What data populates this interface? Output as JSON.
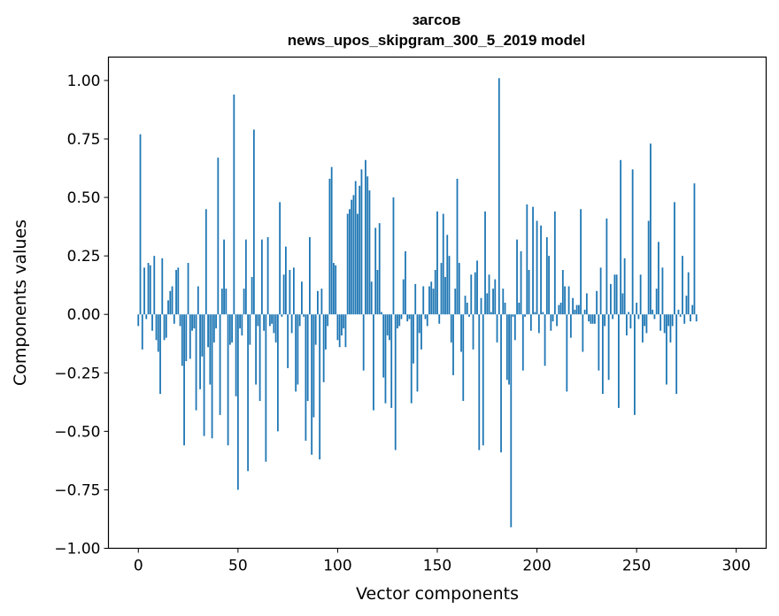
{
  "chart_data": {
    "type": "bar",
    "title": "загсов",
    "subtitle": "news_upos_skipgram_300_5_2019 model",
    "xlabel": "Vector components",
    "ylabel": "Components values",
    "xlim": [
      -15,
      315
    ],
    "ylim": [
      -1.0,
      1.1
    ],
    "xticks": [
      0,
      50,
      100,
      150,
      200,
      250,
      300
    ],
    "xtick_labels": [
      "0",
      "50",
      "100",
      "150",
      "200",
      "250",
      "300"
    ],
    "yticks": [
      1.0,
      0.75,
      0.5,
      0.25,
      0.0,
      -0.25,
      -0.5,
      -0.75,
      -1.0
    ],
    "ytick_labels": [
      "1.00",
      "0.75",
      "0.50",
      "0.25",
      "0.00",
      "−0.25",
      "−0.50",
      "−0.75",
      "−1.00"
    ],
    "grid": false,
    "bar_color": "#1f77b4",
    "series": [
      {
        "values": [
          -0.05,
          0.77,
          -0.15,
          0.2,
          -0.02,
          0.22,
          0.21,
          -0.07,
          0.25,
          -0.11,
          -0.16,
          -0.34,
          0.24,
          -0.11,
          -0.1,
          0.06,
          0.1,
          0.12,
          -0.04,
          0.19,
          0.2,
          -0.05,
          -0.22,
          -0.56,
          -0.2,
          0.22,
          -0.19,
          -0.07,
          -0.06,
          -0.41,
          0.12,
          -0.32,
          -0.18,
          -0.52,
          0.45,
          -0.14,
          -0.3,
          -0.53,
          -0.12,
          -0.06,
          0.67,
          -0.43,
          0.11,
          0.32,
          0.11,
          -0.56,
          -0.13,
          -0.12,
          0.94,
          -0.35,
          -0.75,
          -0.06,
          -0.09,
          0.11,
          0.32,
          -0.67,
          -0.13,
          0.16,
          0.79,
          -0.3,
          -0.05,
          -0.37,
          0.32,
          -0.07,
          -0.63,
          0.33,
          -0.05,
          -0.04,
          -0.08,
          -0.12,
          -0.5,
          0.48,
          -0.01,
          0.17,
          0.29,
          -0.23,
          0.19,
          -0.08,
          0.2,
          -0.33,
          -0.3,
          -0.05,
          0.14,
          -0.01,
          -0.54,
          -0.37,
          0.33,
          -0.6,
          -0.44,
          -0.13,
          0.1,
          -0.62,
          0.11,
          -0.29,
          -0.15,
          -0.05,
          0.58,
          0.63,
          0.22,
          0.21,
          -0.11,
          -0.14,
          -0.09,
          -0.06,
          -0.14,
          0.43,
          0.45,
          0.49,
          0.51,
          0.57,
          0.43,
          0.55,
          0.62,
          -0.24,
          0.66,
          0.59,
          0.53,
          0.14,
          -0.41,
          0.37,
          0.19,
          0.39,
          0.01,
          -0.27,
          -0.38,
          -0.09,
          -0.11,
          -0.4,
          0.5,
          -0.58,
          -0.06,
          -0.05,
          -0.02,
          0.15,
          0.27,
          -0.03,
          -0.02,
          -0.38,
          -0.21,
          0.13,
          -0.33,
          -0.08,
          -0.15,
          0.12,
          -0.02,
          -0.05,
          0.12,
          0.14,
          0.11,
          0.19,
          0.44,
          -0.04,
          0.22,
          0.43,
          0.16,
          0.34,
          0.25,
          -0.12,
          -0.26,
          0.11,
          0.58,
          0.22,
          -0.16,
          -0.37,
          0.08,
          0.05,
          -0.01,
          0.17,
          -0.15,
          0.18,
          0.23,
          -0.58,
          0.07,
          -0.56,
          0.44,
          0.09,
          0.17,
          0.01,
          0.11,
          0.15,
          -0.12,
          1.01,
          -0.59,
          0.11,
          0.05,
          -0.28,
          -0.3,
          -0.91,
          -0.01,
          -0.11,
          0.32,
          0.05,
          0.27,
          -0.24,
          -0.01,
          0.47,
          0.19,
          -0.07,
          0.46,
          0.01,
          0.4,
          -0.08,
          0.38,
          0.01,
          -0.22,
          0.33,
          0.25,
          -0.07,
          -0.03,
          0.44,
          -0.05,
          0.04,
          0.05,
          0.19,
          0.12,
          -0.33,
          0.12,
          -0.1,
          0.07,
          0.02,
          0.04,
          0.04,
          0.45,
          -0.16,
          0.02,
          0.09,
          -0.03,
          -0.04,
          -0.04,
          -0.04,
          0.1,
          -0.24,
          0.2,
          -0.34,
          -0.05,
          0.41,
          -0.28,
          0.13,
          -0.02,
          0.17,
          0.17,
          -0.4,
          0.66,
          0.09,
          0.24,
          -0.09,
          0.01,
          -0.06,
          0.62,
          -0.43,
          0.05,
          -0.02,
          0.17,
          -0.12,
          -0.05,
          -0.08,
          0.4,
          0.73,
          0.02,
          -0.02,
          0.11,
          0.31,
          -0.07,
          0.2,
          -0.08,
          -0.3,
          -0.05,
          -0.12,
          -0.05,
          0.48,
          -0.34,
          0.02,
          -0.01,
          0.25,
          -0.04,
          0.08,
          0.18,
          -0.03,
          0.04,
          0.56,
          -0.03
        ]
      }
    ]
  }
}
